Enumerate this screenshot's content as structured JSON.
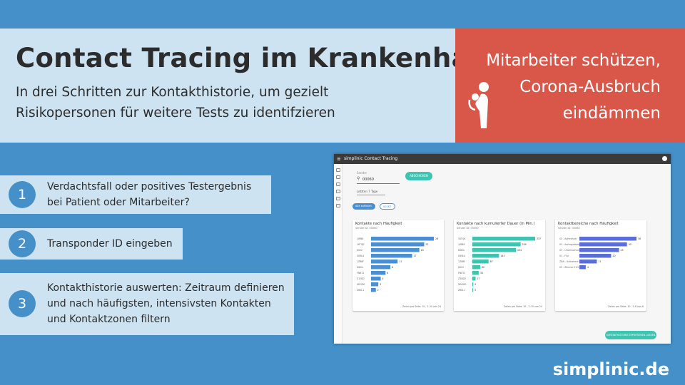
{
  "header": {
    "title": "Contact Tracing im Krankenhaus",
    "subtitle_line1": "In drei Schritten zur Kontakthistorie, um gezielt",
    "subtitle_line2": "Risikopersonen für weitere Tests zu identifzieren"
  },
  "callout": {
    "line1": "Mitarbeiter schützen,",
    "line2": "Corona-Ausbruch",
    "line3": "eindämmen",
    "icon": "doctor-icon"
  },
  "steps": [
    {
      "number": "1",
      "line1": "Verdachtsfall oder positives Testergebnis",
      "line2": "bei Patient oder Mitarbeiter?"
    },
    {
      "number": "2",
      "line1": "Transponder ID eingeben"
    },
    {
      "number": "3",
      "line1": "Kontakthistorie auswerten: Zeitraum definieren",
      "line2": "und nach häufigsten, intensivsten Kontakten",
      "line3": "und Kontaktzonen filtern"
    }
  ],
  "brand": "simplinic.de",
  "app": {
    "title": "simplinic Contact Tracing",
    "search": {
      "label": "Sender",
      "value": "00060",
      "button": "ABSCHICKEN"
    },
    "range": "Letzten 7 Tage",
    "chips": [
      "Alle auflisten",
      "00187"
    ],
    "report_button": "KONTAKTHISTORIE EXPORTIEREN LASSEN",
    "colors": {
      "blue": "#4a8fd0",
      "teal": "#3ec4b1",
      "indigo": "#5a6fd6"
    }
  },
  "chart_data": [
    {
      "type": "bar",
      "title": "Kontakte nach Häufigkeit",
      "subtitle": "Sender ID: 00060",
      "categories": [
        "1JRB6",
        "1KTQK",
        "JKI22",
        "GE6L4",
        "1Z8BF",
        "KI8GL",
        "FN8T2",
        "Z1ND2",
        "9DGD0",
        "Z6KL1"
      ],
      "values": [
        26,
        22,
        20,
        17,
        11,
        8,
        6,
        4,
        3,
        2
      ],
      "footer": "Zeilen pro Seite: 10 · 1–10 von 24"
    },
    {
      "type": "bar",
      "title": "Kontakte nach kumulierter Dauer (in Min.)",
      "subtitle": "Sender ID: 00060",
      "categories": [
        "1KTQK",
        "1JRB6",
        "KI8GL",
        "GE6L4",
        "1Z8BF",
        "JKI22",
        "FN8T2",
        "Z1ND2",
        "9DGD0",
        "Z6KL1"
      ],
      "values": [
        337,
        259,
        234,
        143,
        87,
        42,
        34,
        17,
        5,
        3
      ],
      "footer": "Zeilen pro Seite: 10 · 1–10 von 24"
    },
    {
      "type": "bar",
      "title": "Kontaktbereiche nach Häufigkeit",
      "subtitle": "Sender ID: 00060",
      "categories": [
        "02 - Aufenthalt",
        "03 - Aufzugsbereich",
        "03 - Untersuchung",
        "01 - Flur",
        "ZNA - Aufnahme",
        "02 - Zimmer 103"
      ],
      "values": [
        36,
        30,
        25,
        20,
        11,
        4
      ],
      "footer": "Zeilen pro Seite: 10 · 1–6 von 6"
    }
  ]
}
